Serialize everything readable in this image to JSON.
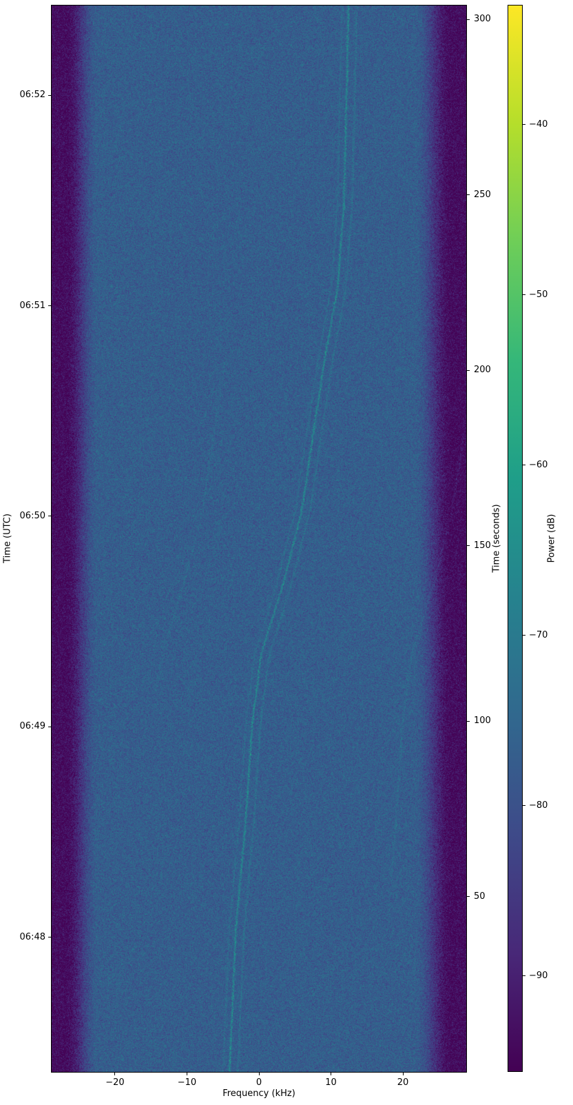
{
  "chart_data": {
    "type": "heatmap",
    "title": "",
    "xlabel": "Frequency (kHz)",
    "ylabel_left": "Time (UTC)",
    "ylabel_right": "Time (seconds)",
    "colorbar_label": "Power (dB)",
    "xlim": [
      -28.8,
      28.8
    ],
    "duration_seconds": 304,
    "x_ticks": [
      {
        "value": -20,
        "label": "−20"
      },
      {
        "value": -10,
        "label": "−10"
      },
      {
        "value": 0,
        "label": "0"
      },
      {
        "value": 10,
        "label": "10"
      },
      {
        "value": 20,
        "label": "20"
      }
    ],
    "utc_ticks": [
      {
        "t": 38.4,
        "label": "06:48"
      },
      {
        "t": 98.4,
        "label": "06:49"
      },
      {
        "t": 158.4,
        "label": "06:50"
      },
      {
        "t": 218.4,
        "label": "06:51"
      },
      {
        "t": 278.4,
        "label": "06:52"
      }
    ],
    "seconds_ticks": [
      {
        "value": 50,
        "label": "50"
      },
      {
        "value": 100,
        "label": "100"
      },
      {
        "value": 150,
        "label": "150"
      },
      {
        "value": 200,
        "label": "200"
      },
      {
        "value": 250,
        "label": "250"
      },
      {
        "value": 300,
        "label": "300"
      }
    ],
    "colorbar_ticks": [
      {
        "value": -40,
        "label": "−40"
      },
      {
        "value": -50,
        "label": "−50"
      },
      {
        "value": -60,
        "label": "−60"
      },
      {
        "value": -70,
        "label": "−70"
      },
      {
        "value": -80,
        "label": "−80"
      },
      {
        "value": -90,
        "label": "−90"
      }
    ],
    "power_range_db": [
      -95.6,
      -33.0
    ],
    "colors": {
      "viridis_stops": [
        "#440154",
        "#482878",
        "#3e4a89",
        "#31688e",
        "#26828e",
        "#1f9e89",
        "#35b779",
        "#6ece58",
        "#b5de2b",
        "#fde725"
      ],
      "background": "#ffffff",
      "spine": "#000000",
      "text": "#000000"
    },
    "spectrogram": {
      "noise_floor_db": -77,
      "edge_floor_db": -94,
      "noise_sigma_db": 3.2,
      "left_edge_khz": -24.6,
      "left_edge_halfwidth_khz": 2.2,
      "right_edge_khz": 24.2,
      "right_edge_halfwidth_khz": 2.6,
      "main_trace_t_khz": [
        [
          0,
          -4.1
        ],
        [
          17,
          -3.7
        ],
        [
          40,
          -3.25
        ],
        [
          70,
          -1.9
        ],
        [
          99,
          -0.95
        ],
        [
          119,
          0.3
        ],
        [
          139,
          3.35
        ],
        [
          160,
          5.95
        ],
        [
          182,
          7.55
        ],
        [
          204,
          9.2
        ],
        [
          223,
          10.9
        ],
        [
          247,
          11.8
        ],
        [
          277,
          12.15
        ],
        [
          304,
          12.45
        ]
      ],
      "main_trace_gain_db": 10,
      "sidebands": [
        {
          "offset_khz": -0.9,
          "gain_db": 3.2
        },
        {
          "offset_khz": 1.15,
          "gain_db": 4.2
        }
      ],
      "ghost_traces": [
        {
          "offset_khz": 20.9,
          "t_range": [
            40,
            195
          ],
          "fade_s": 28,
          "gain_db": 2.6
        },
        {
          "offset_khz": -13.8,
          "t_range": [
            100,
            215
          ],
          "fade_s": 28,
          "gain_db": 2.2
        }
      ],
      "streak_rows_t": [
        292,
        265,
        169
      ],
      "streak_gain_db": 1.1
    }
  }
}
